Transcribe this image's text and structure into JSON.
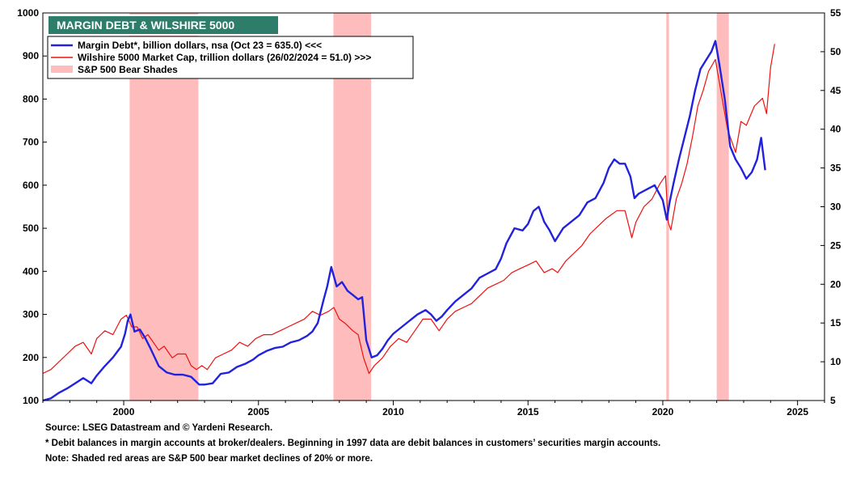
{
  "chart_data": {
    "type": "line",
    "title": "MARGIN DEBT & WILSHIRE 5000",
    "xlim": [
      1997.0,
      2026.0
    ],
    "x_ticks": [
      2000,
      2005,
      2010,
      2015,
      2020,
      2025
    ],
    "y_left": {
      "lim": [
        100,
        1000
      ],
      "ticks": [
        100,
        200,
        300,
        400,
        500,
        600,
        700,
        800,
        900,
        1000
      ]
    },
    "y_right": {
      "lim": [
        5,
        55
      ],
      "ticks": [
        5,
        10,
        15,
        20,
        25,
        30,
        35,
        40,
        45,
        50,
        55
      ]
    },
    "legend": {
      "placement": "top-left",
      "entries": [
        {
          "label": "Margin Debt*, billion dollars, nsa (Oct 23 = 635.0) <<<",
          "color": "#2222dd",
          "kind": "line"
        },
        {
          "label": "Wilshire 5000 Market Cap, trillion dollars  (26/02/2024 = 51.0) >>>",
          "color": "#ee1111",
          "kind": "line"
        },
        {
          "label": "S&P 500 Bear Shades",
          "color": "#ffbcbc",
          "kind": "swatch"
        }
      ]
    },
    "bear_shades": [
      {
        "start": 2000.22,
        "end": 2002.77
      },
      {
        "start": 2007.78,
        "end": 2009.18
      },
      {
        "start": 2020.13,
        "end": 2020.23
      },
      {
        "start": 2022.0,
        "end": 2022.45
      }
    ],
    "series": [
      {
        "name": "Margin Debt*, billion dollars, nsa",
        "axis": "left",
        "color": "#2222dd",
        "x": [
          1997.0,
          1997.3,
          1997.6,
          1997.9,
          1998.2,
          1998.5,
          1998.8,
          1999.0,
          1999.3,
          1999.6,
          1999.9,
          2000.05,
          2000.15,
          2000.25,
          2000.4,
          2000.6,
          2000.8,
          2001.0,
          2001.3,
          2001.6,
          2001.9,
          2002.2,
          2002.5,
          2002.8,
          2003.0,
          2003.3,
          2003.6,
          2003.9,
          2004.2,
          2004.5,
          2004.8,
          2005.0,
          2005.3,
          2005.6,
          2005.9,
          2006.2,
          2006.5,
          2006.8,
          2007.0,
          2007.2,
          2007.4,
          2007.55,
          2007.7,
          2007.9,
          2008.1,
          2008.3,
          2008.5,
          2008.7,
          2008.85,
          2009.0,
          2009.2,
          2009.4,
          2009.6,
          2009.8,
          2010.0,
          2010.3,
          2010.6,
          2010.9,
          2011.2,
          2011.4,
          2011.6,
          2011.8,
          2012.0,
          2012.3,
          2012.6,
          2012.9,
          2013.2,
          2013.5,
          2013.8,
          2014.0,
          2014.2,
          2014.5,
          2014.8,
          2015.0,
          2015.2,
          2015.4,
          2015.6,
          2015.8,
          2016.0,
          2016.3,
          2016.6,
          2016.9,
          2017.2,
          2017.5,
          2017.8,
          2018.0,
          2018.2,
          2018.4,
          2018.6,
          2018.8,
          2018.95,
          2019.1,
          2019.4,
          2019.7,
          2020.0,
          2020.15,
          2020.25,
          2020.4,
          2020.6,
          2020.8,
          2021.0,
          2021.2,
          2021.4,
          2021.6,
          2021.8,
          2021.95,
          2022.1,
          2022.3,
          2022.5,
          2022.7,
          2022.9,
          2023.1,
          2023.3,
          2023.5,
          2023.65,
          2023.8
        ],
        "values": [
          100,
          105,
          118,
          128,
          140,
          152,
          140,
          158,
          180,
          200,
          225,
          255,
          285,
          300,
          260,
          265,
          245,
          220,
          180,
          165,
          160,
          160,
          155,
          137,
          137,
          140,
          162,
          165,
          178,
          185,
          195,
          205,
          215,
          222,
          225,
          235,
          240,
          250,
          260,
          280,
          330,
          365,
          410,
          365,
          375,
          355,
          345,
          335,
          340,
          240,
          200,
          205,
          220,
          240,
          255,
          270,
          285,
          300,
          310,
          300,
          285,
          295,
          310,
          330,
          345,
          360,
          385,
          395,
          405,
          430,
          465,
          500,
          495,
          510,
          540,
          550,
          515,
          495,
          470,
          500,
          515,
          530,
          560,
          570,
          605,
          640,
          660,
          650,
          650,
          620,
          570,
          580,
          590,
          600,
          565,
          520,
          560,
          605,
          660,
          710,
          760,
          820,
          870,
          890,
          910,
          935,
          880,
          800,
          690,
          660,
          640,
          615,
          630,
          660,
          710,
          635
        ]
      },
      {
        "name": "Wilshire 5000 Market Cap, trillion dollars",
        "axis": "right",
        "color": "#ee1111",
        "x": [
          1997.0,
          1997.3,
          1997.6,
          1997.9,
          1998.2,
          1998.5,
          1998.8,
          1999.0,
          1999.3,
          1999.6,
          1999.9,
          2000.1,
          2000.3,
          2000.5,
          2000.7,
          2000.9,
          2001.1,
          2001.3,
          2001.5,
          2001.8,
          2002.0,
          2002.3,
          2002.5,
          2002.7,
          2002.9,
          2003.1,
          2003.4,
          2003.7,
          2004.0,
          2004.3,
          2004.6,
          2004.9,
          2005.2,
          2005.5,
          2005.8,
          2006.1,
          2006.4,
          2006.7,
          2007.0,
          2007.3,
          2007.6,
          2007.8,
          2008.0,
          2008.2,
          2008.5,
          2008.7,
          2008.9,
          2009.1,
          2009.3,
          2009.6,
          2009.9,
          2010.2,
          2010.5,
          2010.8,
          2011.1,
          2011.4,
          2011.7,
          2012.0,
          2012.3,
          2012.6,
          2012.9,
          2013.2,
          2013.5,
          2013.8,
          2014.1,
          2014.4,
          2014.7,
          2015.0,
          2015.3,
          2015.6,
          2015.9,
          2016.1,
          2016.4,
          2016.7,
          2017.0,
          2017.3,
          2017.6,
          2017.9,
          2018.1,
          2018.3,
          2018.6,
          2018.85,
          2019.0,
          2019.3,
          2019.6,
          2019.9,
          2020.1,
          2020.2,
          2020.3,
          2020.5,
          2020.7,
          2020.9,
          2021.1,
          2021.3,
          2021.5,
          2021.7,
          2021.95,
          2022.2,
          2022.4,
          2022.7,
          2022.9,
          2023.1,
          2023.4,
          2023.7,
          2023.85,
          2024.0,
          2024.15
        ],
        "values": [
          8.5,
          9.0,
          10.0,
          11.0,
          12.0,
          12.5,
          11.0,
          13.0,
          14.0,
          13.5,
          15.5,
          16.0,
          14.5,
          14.5,
          13.0,
          13.5,
          12.5,
          11.5,
          12.0,
          10.5,
          11.0,
          11.0,
          9.5,
          9.0,
          9.5,
          9.0,
          10.5,
          11.0,
          11.5,
          12.5,
          12.0,
          13.0,
          13.5,
          13.5,
          14.0,
          14.5,
          15.0,
          15.5,
          16.5,
          16.0,
          16.5,
          17.0,
          15.5,
          15.0,
          14.0,
          13.5,
          10.5,
          8.5,
          9.5,
          10.5,
          12.0,
          13.0,
          12.5,
          14.0,
          15.5,
          15.5,
          14.0,
          15.5,
          16.5,
          17.0,
          17.5,
          18.5,
          19.5,
          20.0,
          20.5,
          21.5,
          22.0,
          22.5,
          23.0,
          21.5,
          22.0,
          21.5,
          23.0,
          24.0,
          25.0,
          26.5,
          27.5,
          28.5,
          29.0,
          29.5,
          29.5,
          26.0,
          28.0,
          30.0,
          31.0,
          33.0,
          34.0,
          28.0,
          27.0,
          31.0,
          33.0,
          35.5,
          39.0,
          43.0,
          45.0,
          47.5,
          49.0,
          44.0,
          40.0,
          37.0,
          41.0,
          40.5,
          43.0,
          44.0,
          42.0,
          48.0,
          51.0
        ]
      }
    ]
  },
  "notes": {
    "source": "Source: LSEG Datastream and © Yardeni Research.",
    "footnote": "* Debit balances in margin accounts at broker/dealers. Beginning in 1997 data are debit balances in customers’ securities margin accounts.",
    "note": "Note: Shaded red areas are S&P 500 bear market declines of 20% or more."
  },
  "colors": {
    "title_bg": "#2e7d6b",
    "margin_line": "#2222dd",
    "wilshire_line": "#ee1111",
    "bear_shade": "#ffbcbc"
  }
}
